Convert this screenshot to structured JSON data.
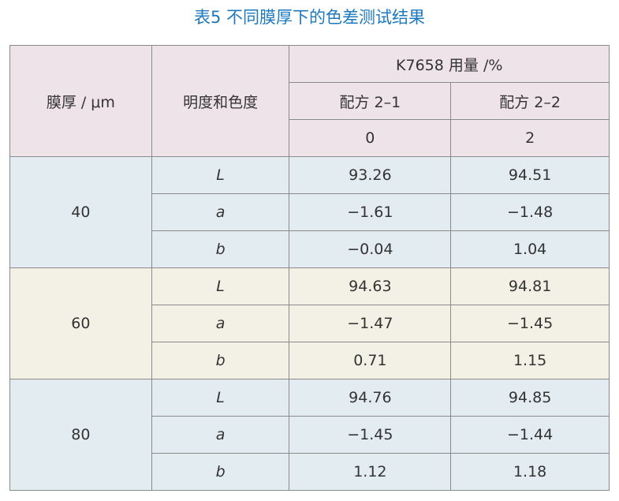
{
  "title": "表5 不同膜厚下的色差测试结果",
  "table": {
    "header": {
      "thickness": "膜厚 / μm",
      "color": "明度和色度",
      "group": "K7658 用量 /%",
      "formulas": [
        "配方 2–1",
        "配方 2–2"
      ],
      "doses": [
        "0",
        "2"
      ]
    },
    "groups": [
      {
        "thickness": "40",
        "rows": [
          [
            "L",
            "93.26",
            "94.51"
          ],
          [
            "a",
            "−1.61",
            "−1.48"
          ],
          [
            "b",
            "−0.04",
            "1.04"
          ]
        ]
      },
      {
        "thickness": "60",
        "rows": [
          [
            "L",
            "94.63",
            "94.81"
          ],
          [
            "a",
            "−1.47",
            "−1.45"
          ],
          [
            "b",
            "0.71",
            "1.15"
          ]
        ]
      },
      {
        "thickness": "80",
        "rows": [
          [
            "L",
            "94.76",
            "94.85"
          ],
          [
            "a",
            "−1.45",
            "−1.44"
          ],
          [
            "b",
            "1.12",
            "1.18"
          ]
        ]
      }
    ]
  }
}
